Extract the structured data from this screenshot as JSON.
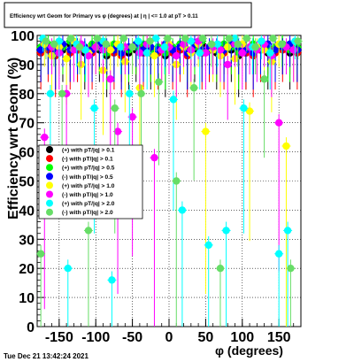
{
  "chart_data": {
    "type": "scatter",
    "title": "Efficiency wrt Geom for Primary vs φ (degrees) at | η | <= 1.0 at pT > 0.11",
    "xlabel": "φ (degrees)",
    "ylabel": "Efficiency wrt Geom (%)",
    "xlim": [
      -180,
      180
    ],
    "ylim": [
      0,
      100
    ],
    "x_ticks": [
      -150,
      -100,
      -50,
      0,
      50,
      100,
      150
    ],
    "y_ticks": [
      0,
      10,
      20,
      30,
      40,
      50,
      60,
      70,
      80,
      90,
      100
    ],
    "grid": true,
    "legend_position": "left-middle",
    "series": [
      {
        "name": "(+) with pT/|q| > 0.1",
        "color": "#000000",
        "x": [
          -175,
          -165,
          -155,
          -145,
          -135,
          -125,
          -115,
          -105,
          -95,
          -85,
          -75,
          -65,
          -55,
          -45,
          -35,
          -25,
          -15,
          -5,
          5,
          15,
          25,
          35,
          45,
          55,
          65,
          75,
          85,
          95,
          105,
          115,
          125,
          135,
          145,
          155,
          165,
          175
        ],
        "y": [
          95,
          96,
          94,
          95,
          97,
          95,
          94,
          96,
          95,
          93,
          96,
          95,
          94,
          95,
          96,
          94,
          95,
          93,
          95,
          96,
          94,
          95,
          97,
          95,
          94,
          96,
          95,
          93,
          94,
          96,
          95,
          94,
          95,
          96,
          94,
          95
        ]
      },
      {
        "name": "(-) with pT/|q| > 0.1",
        "color": "#ff0000",
        "x": [
          -175,
          -165,
          -155,
          -145,
          -135,
          -125,
          -115,
          -105,
          -95,
          -85,
          -75,
          -65,
          -55,
          -45,
          -35,
          -25,
          -15,
          -5,
          5,
          15,
          25,
          35,
          45,
          55,
          65,
          75,
          85,
          95,
          105,
          115,
          125,
          135,
          145,
          155,
          165,
          175
        ],
        "y": [
          94,
          95,
          93,
          96,
          94,
          95,
          95,
          94,
          96,
          95,
          94,
          93,
          95,
          96,
          94,
          95,
          94,
          96,
          94,
          95,
          93,
          96,
          94,
          95,
          95,
          94,
          96,
          95,
          94,
          93,
          95,
          96,
          94,
          95,
          96,
          94
        ]
      },
      {
        "name": "(+) with pT/|q| > 0.5",
        "color": "#00ff00",
        "x": [
          -175,
          -165,
          -155,
          -145,
          -135,
          -125,
          -115,
          -105,
          -95,
          -85,
          -75,
          -65,
          -55,
          -45,
          -35,
          -25,
          -15,
          -5,
          5,
          15,
          25,
          35,
          45,
          55,
          65,
          75,
          85,
          95,
          105,
          115,
          125,
          135,
          145,
          155,
          165,
          175
        ],
        "y": [
          96,
          97,
          95,
          96,
          98,
          96,
          95,
          97,
          96,
          94,
          97,
          96,
          95,
          96,
          97,
          95,
          96,
          94,
          96,
          97,
          95,
          96,
          98,
          96,
          95,
          97,
          96,
          94,
          95,
          97,
          96,
          95,
          96,
          97,
          95,
          96
        ]
      },
      {
        "name": "(-) with pT/|q| > 0.5",
        "color": "#0000ff",
        "x": [
          -175,
          -165,
          -155,
          -145,
          -135,
          -125,
          -115,
          -105,
          -95,
          -85,
          -75,
          -65,
          -55,
          -45,
          -35,
          -25,
          -15,
          -5,
          5,
          15,
          25,
          35,
          45,
          55,
          65,
          75,
          85,
          95,
          105,
          115,
          125,
          135,
          145,
          155,
          165,
          175
        ],
        "y": [
          95,
          96,
          94,
          97,
          95,
          96,
          96,
          95,
          97,
          96,
          95,
          94,
          96,
          97,
          95,
          96,
          95,
          97,
          95,
          96,
          94,
          97,
          95,
          96,
          96,
          95,
          97,
          96,
          95,
          94,
          96,
          97,
          95,
          96,
          97,
          95
        ]
      },
      {
        "name": "(+) with pT/|q| > 1.0",
        "color": "#ffff00",
        "x": [
          -170,
          -160,
          -150,
          -140,
          -130,
          -120,
          -110,
          -100,
          -90,
          -80,
          -70,
          -60,
          -50,
          -40,
          -30,
          -20,
          -10,
          0,
          10,
          20,
          30,
          40,
          50,
          60,
          70,
          80,
          90,
          100,
          110,
          120,
          130,
          140,
          150,
          160,
          170
        ],
        "y": [
          97,
          93,
          96,
          92,
          98,
          90,
          94,
          96,
          88,
          95,
          97,
          91,
          96,
          82,
          97,
          93,
          95,
          97,
          90,
          96,
          94,
          97,
          67,
          95,
          93,
          96,
          92,
          97,
          74,
          96,
          95,
          91,
          97,
          62,
          95
        ]
      },
      {
        "name": "(-) with pT/|q| > 1.0",
        "color": "#ff00ff",
        "x": [
          -170,
          -160,
          -150,
          -140,
          -130,
          -120,
          -110,
          -100,
          -90,
          -80,
          -70,
          -60,
          -50,
          -40,
          -30,
          -20,
          -10,
          0,
          10,
          20,
          30,
          40,
          50,
          60,
          70,
          80,
          90,
          100,
          110,
          120,
          130,
          140,
          150,
          160,
          170
        ],
        "y": [
          65,
          96,
          94,
          80,
          95,
          97,
          93,
          96,
          95,
          85,
          67,
          96,
          72,
          94,
          97,
          58,
          95,
          96,
          93,
          97,
          95,
          98,
          94,
          96,
          95,
          90,
          97,
          94,
          96,
          95,
          97,
          93,
          70,
          96,
          95
        ]
      },
      {
        "name": "(+) with pT/|q| > 2.0",
        "color": "#00ffff",
        "x": [
          -172,
          -162,
          -150,
          -138,
          -126,
          -114,
          -102,
          -90,
          -78,
          -66,
          -54,
          -42,
          -30,
          -18,
          -6,
          6,
          18,
          30,
          42,
          54,
          66,
          78,
          90,
          102,
          114,
          126,
          138,
          150,
          162,
          172
        ],
        "y": [
          99,
          80,
          98,
          20,
          97,
          95,
          75,
          98,
          16,
          96,
          80,
          98,
          94,
          99,
          96,
          78,
          40,
          98,
          94,
          28,
          97,
          33,
          99,
          75,
          96,
          98,
          94,
          25,
          33,
          98
        ]
      },
      {
        "name": "(-) with pT/|q| > 2.0",
        "color": "#66dd66",
        "x": [
          -175,
          -168,
          -157,
          -146,
          -134,
          -122,
          -110,
          -98,
          -86,
          -74,
          -62,
          -50,
          -38,
          -26,
          -14,
          -2,
          10,
          22,
          34,
          46,
          58,
          70,
          82,
          94,
          106,
          118,
          130,
          142,
          154,
          166,
          176
        ],
        "y": [
          25,
          98,
          97,
          80,
          99,
          96,
          33,
          99,
          97,
          75,
          99,
          96,
          80,
          98,
          84,
          99,
          50,
          99,
          82,
          99,
          97,
          20,
          99,
          97,
          99,
          96,
          85,
          99,
          97,
          20,
          98
        ]
      }
    ]
  },
  "footer": {
    "timestamp": "Tue Dec 21 13:42:24 2021"
  }
}
